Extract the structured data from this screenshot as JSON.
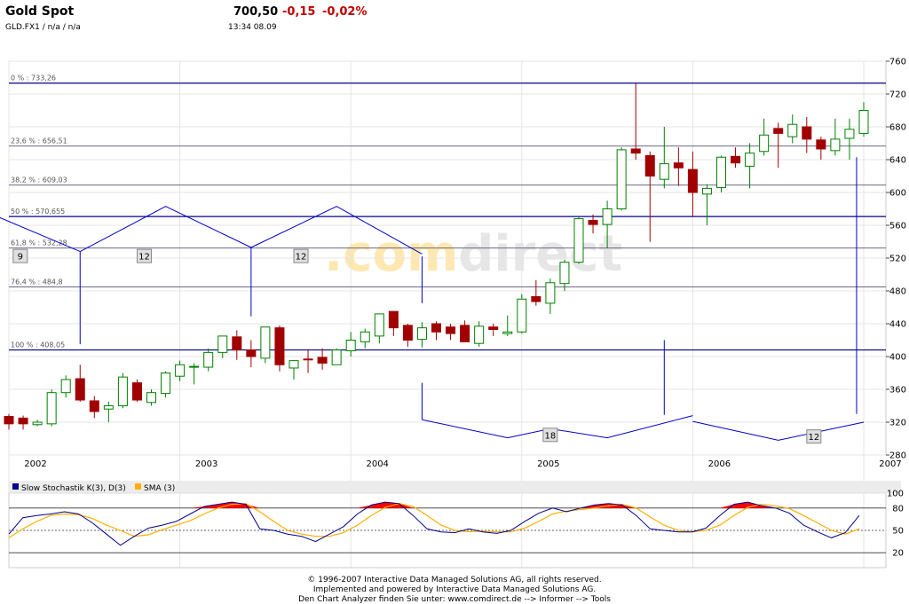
{
  "header": {
    "title": "Gold Spot",
    "symbol_line": "GLD.FX1  /  n/a  /  n/a",
    "price": "700,50",
    "change": "-0,15",
    "change_pct": "-0,02%",
    "timestamp": "13:34  08.09"
  },
  "colors": {
    "up_body": "#ffffff",
    "up_border": "#008000",
    "down_body": "#a00000",
    "fib_line": "#00008b",
    "cycle_line": "#0000cc",
    "stoch_k": "#00008b",
    "stoch_sma": "#ffb000",
    "stoch_fill": "#ff0000",
    "watermark": "#ffe8b0"
  },
  "watermark": {
    "part1": ".com",
    "part2": "direct"
  },
  "chart_data": [
    {
      "type": "candlestick",
      "ylim": [
        280,
        760
      ],
      "y_ticks": [
        280,
        320,
        360,
        400,
        440,
        480,
        520,
        560,
        600,
        640,
        680,
        720,
        760
      ],
      "x_labels": [
        {
          "label": "2002",
          "month": 0
        },
        {
          "label": "2003",
          "month": 12
        },
        {
          "label": "2004",
          "month": 24
        },
        {
          "label": "2005",
          "month": 36
        },
        {
          "label": "2006",
          "month": 48
        },
        {
          "label": "2007",
          "month": 60
        }
      ],
      "candles": [
        {
          "m": 0,
          "o": 327,
          "h": 330,
          "l": 311,
          "c": 318
        },
        {
          "m": 1,
          "o": 325,
          "h": 328,
          "l": 311,
          "c": 318
        },
        {
          "m": 2,
          "o": 317,
          "h": 323,
          "l": 315,
          "c": 320
        },
        {
          "m": 3,
          "o": 318,
          "h": 360,
          "l": 315,
          "c": 356
        },
        {
          "m": 4,
          "o": 356,
          "h": 377,
          "l": 350,
          "c": 372
        },
        {
          "m": 5,
          "o": 373,
          "h": 390,
          "l": 345,
          "c": 347
        },
        {
          "m": 6,
          "o": 346,
          "h": 352,
          "l": 325,
          "c": 333
        },
        {
          "m": 7,
          "o": 336,
          "h": 345,
          "l": 320,
          "c": 340
        },
        {
          "m": 8,
          "o": 340,
          "h": 380,
          "l": 337,
          "c": 375
        },
        {
          "m": 9,
          "o": 368,
          "h": 372,
          "l": 345,
          "c": 347
        },
        {
          "m": 10,
          "o": 344,
          "h": 360,
          "l": 340,
          "c": 356
        },
        {
          "m": 11,
          "o": 355,
          "h": 382,
          "l": 350,
          "c": 380
        },
        {
          "m": 12,
          "o": 376,
          "h": 395,
          "l": 370,
          "c": 390
        },
        {
          "m": 13,
          "o": 388,
          "h": 392,
          "l": 366,
          "c": 388
        },
        {
          "m": 14,
          "o": 387,
          "h": 410,
          "l": 382,
          "c": 405
        },
        {
          "m": 15,
          "o": 405,
          "h": 425,
          "l": 398,
          "c": 425
        },
        {
          "m": 16,
          "o": 424,
          "h": 432,
          "l": 396,
          "c": 408
        },
        {
          "m": 17,
          "o": 408,
          "h": 420,
          "l": 387,
          "c": 400
        },
        {
          "m": 18,
          "o": 398,
          "h": 436,
          "l": 392,
          "c": 436
        },
        {
          "m": 19,
          "o": 435,
          "h": 438,
          "l": 382,
          "c": 390
        },
        {
          "m": 20,
          "o": 386,
          "h": 396,
          "l": 372,
          "c": 395
        },
        {
          "m": 21,
          "o": 397,
          "h": 409,
          "l": 380,
          "c": 396
        },
        {
          "m": 22,
          "o": 399,
          "h": 410,
          "l": 384,
          "c": 392
        },
        {
          "m": 23,
          "o": 390,
          "h": 410,
          "l": 390,
          "c": 408
        },
        {
          "m": 24,
          "o": 407,
          "h": 430,
          "l": 400,
          "c": 420
        },
        {
          "m": 25,
          "o": 418,
          "h": 434,
          "l": 410,
          "c": 430
        },
        {
          "m": 26,
          "o": 425,
          "h": 452,
          "l": 416,
          "c": 452
        },
        {
          "m": 27,
          "o": 455,
          "h": 455,
          "l": 425,
          "c": 435
        },
        {
          "m": 28,
          "o": 438,
          "h": 440,
          "l": 412,
          "c": 420
        },
        {
          "m": 29,
          "o": 421,
          "h": 442,
          "l": 411,
          "c": 435
        },
        {
          "m": 30,
          "o": 440,
          "h": 443,
          "l": 420,
          "c": 430
        },
        {
          "m": 31,
          "o": 436,
          "h": 440,
          "l": 420,
          "c": 428
        },
        {
          "m": 32,
          "o": 438,
          "h": 444,
          "l": 418,
          "c": 418
        },
        {
          "m": 33,
          "o": 416,
          "h": 443,
          "l": 412,
          "c": 437
        },
        {
          "m": 34,
          "o": 436,
          "h": 440,
          "l": 425,
          "c": 433
        },
        {
          "m": 35,
          "o": 428,
          "h": 450,
          "l": 425,
          "c": 430
        },
        {
          "m": 36,
          "o": 430,
          "h": 476,
          "l": 428,
          "c": 470
        },
        {
          "m": 37,
          "o": 473,
          "h": 493,
          "l": 462,
          "c": 467
        },
        {
          "m": 38,
          "o": 465,
          "h": 495,
          "l": 452,
          "c": 490
        },
        {
          "m": 39,
          "o": 489,
          "h": 518,
          "l": 480,
          "c": 515
        },
        {
          "m": 40,
          "o": 515,
          "h": 570,
          "l": 513,
          "c": 568
        },
        {
          "m": 41,
          "o": 566,
          "h": 573,
          "l": 550,
          "c": 561
        },
        {
          "m": 42,
          "o": 561,
          "h": 590,
          "l": 532,
          "c": 580
        },
        {
          "m": 43,
          "o": 580,
          "h": 655,
          "l": 578,
          "c": 652
        },
        {
          "m": 44,
          "o": 653,
          "h": 733,
          "l": 640,
          "c": 648
        },
        {
          "m": 45,
          "o": 645,
          "h": 650,
          "l": 540,
          "c": 620
        },
        {
          "m": 46,
          "o": 616,
          "h": 680,
          "l": 605,
          "c": 635
        },
        {
          "m": 47,
          "o": 636,
          "h": 655,
          "l": 608,
          "c": 630
        },
        {
          "m": 48,
          "o": 628,
          "h": 650,
          "l": 570,
          "c": 600
        },
        {
          "m": 49,
          "o": 598,
          "h": 610,
          "l": 560,
          "c": 605
        },
        {
          "m": 50,
          "o": 606,
          "h": 645,
          "l": 600,
          "c": 643
        },
        {
          "m": 51,
          "o": 644,
          "h": 655,
          "l": 630,
          "c": 636
        },
        {
          "m": 52,
          "o": 632,
          "h": 660,
          "l": 605,
          "c": 648
        },
        {
          "m": 53,
          "o": 650,
          "h": 690,
          "l": 645,
          "c": 670
        },
        {
          "m": 54,
          "o": 678,
          "h": 685,
          "l": 630,
          "c": 672
        },
        {
          "m": 55,
          "o": 668,
          "h": 695,
          "l": 660,
          "c": 683
        },
        {
          "m": 56,
          "o": 680,
          "h": 692,
          "l": 648,
          "c": 665
        },
        {
          "m": 57,
          "o": 664,
          "h": 668,
          "l": 640,
          "c": 653
        },
        {
          "m": 58,
          "o": 651,
          "h": 690,
          "l": 645,
          "c": 665
        },
        {
          "m": 59,
          "o": 666,
          "h": 690,
          "l": 640,
          "c": 677
        },
        {
          "m": 60,
          "o": 672,
          "h": 710,
          "l": 668,
          "c": 700
        }
      ],
      "fib_levels": [
        {
          "label": "0 % : 733,26",
          "value": 733.26
        },
        {
          "label": "23,6 % : 656,51",
          "value": 656.51
        },
        {
          "label": "38,2 % : 609,03",
          "value": 609.03
        },
        {
          "label": "50 % : 570,655",
          "value": 570.655
        },
        {
          "label": "61,8 % : 532,28",
          "value": 532.28
        },
        {
          "label": "76,4 % : 484,8",
          "value": 484.8
        },
        {
          "label": "100 % : 408,05",
          "value": 408.05
        }
      ],
      "cycles": [
        {
          "label": "9",
          "points": [
            [
              -1,
              572
            ],
            [
              5,
              528
            ]
          ],
          "box_m": 0.8,
          "box_v": 522,
          "vlines": [
            [
              5,
              528,
              415
            ]
          ]
        },
        {
          "label": "12",
          "points": [
            [
              5,
              528
            ],
            [
              11,
              583
            ],
            [
              17,
              533
            ]
          ],
          "box_m": 9.5,
          "box_v": 522,
          "vlines": [
            [
              17,
              533,
              449
            ]
          ]
        },
        {
          "label": "12",
          "points": [
            [
              17,
              533
            ],
            [
              23,
              583
            ],
            [
              29,
              525
            ]
          ],
          "box_m": 20.5,
          "box_v": 522,
          "vlines": [
            [
              29,
              522,
              465
            ]
          ]
        },
        {
          "label": "18",
          "points": [
            [
              29,
              323
            ],
            [
              35,
              301
            ],
            [
              38,
              312
            ],
            [
              42,
              301
            ],
            [
              48,
              328
            ]
          ],
          "box_m": 38,
          "box_v": 304,
          "vlines": [
            [
              29,
              368,
              323
            ]
          ]
        },
        {
          "label": "12",
          "points": [
            [
              48,
              321
            ],
            [
              54,
              298
            ],
            [
              60,
              320
            ]
          ],
          "box_m": 56.5,
          "box_v": 302,
          "vlines": [
            [
              46,
              420,
              329
            ],
            [
              59.5,
              643,
              330
            ]
          ]
        }
      ]
    },
    {
      "type": "line",
      "legend": [
        "Slow Stochastik K(3), D(3)",
        "SMA (3)"
      ],
      "ylim": [
        0,
        100
      ],
      "y_ticks": [
        20,
        50,
        80,
        100
      ],
      "k": [
        45,
        67,
        70,
        72,
        75,
        72,
        60,
        45,
        30,
        42,
        53,
        57,
        62,
        72,
        82,
        85,
        88,
        85,
        52,
        50,
        45,
        42,
        35,
        45,
        55,
        72,
        84,
        88,
        86,
        70,
        52,
        48,
        47,
        52,
        48,
        46,
        50,
        62,
        73,
        80,
        75,
        80,
        84,
        86,
        84,
        70,
        52,
        50,
        48,
        48,
        53,
        70,
        85,
        88,
        83,
        80,
        73,
        57,
        48,
        40,
        47,
        70
      ],
      "sma": [
        40,
        52,
        62,
        70,
        72,
        71,
        66,
        57,
        50,
        42,
        44,
        51,
        57,
        63,
        72,
        80,
        85,
        86,
        75,
        62,
        50,
        45,
        42,
        42,
        47,
        57,
        70,
        81,
        86,
        82,
        70,
        57,
        50,
        48,
        49,
        48,
        48,
        53,
        62,
        72,
        76,
        78,
        80,
        83,
        85,
        80,
        68,
        57,
        50,
        48,
        50,
        57,
        70,
        81,
        85,
        83,
        79,
        70,
        60,
        50,
        45,
        52
      ]
    }
  ],
  "footer": {
    "line1": "© 1996-2007 Interactive Data Managed Solutions AG, all rights reserved.",
    "line2": "Implemented and powered by Interactive Data Managed Solutions AG.",
    "line3": "Den Chart Analyzer finden Sie unter: www.comdirect.de --> Informer --> Tools"
  }
}
